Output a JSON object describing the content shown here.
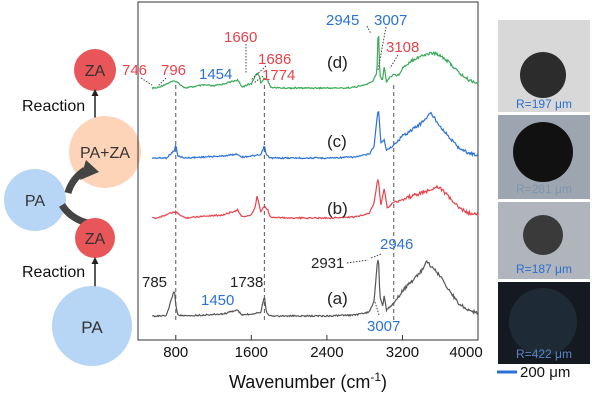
{
  "chart_data": {
    "type": "line",
    "xlabel": "Wavenumber (cm",
    "xlabel_sup": "-1",
    "xlabel_close": ")",
    "xlim": [
      400,
      4000
    ],
    "xticks": [
      800,
      1600,
      2400,
      3200,
      4000
    ],
    "grid": false,
    "series_colors": {
      "d": "#3aaa5a",
      "c": "#2b72d6",
      "b": "#e8424a",
      "a": "#555555"
    },
    "series": [
      {
        "name": "(d)",
        "key": "d",
        "color": "#3aaa5a",
        "baseline": 88,
        "x": [
          600,
          746,
          796,
          900,
          1100,
          1200,
          1300,
          1454,
          1500,
          1550,
          1600,
          1640,
          1660,
          1686,
          1700,
          1738,
          1774,
          1800,
          1900,
          2000,
          2200,
          2400,
          2600,
          2700,
          2800,
          2880,
          2930,
          2945,
          2960,
          2990,
          3007,
          3030,
          3060,
          3108,
          3150,
          3200,
          3300,
          3400,
          3500,
          3560,
          3600,
          3700,
          3800,
          3900,
          4000
        ],
        "y": [
          0,
          6,
          7,
          0,
          3,
          2,
          4,
          8,
          1,
          3,
          4,
          12,
          15,
          12,
          5,
          10,
          8,
          1,
          0,
          0,
          0,
          0,
          0,
          1,
          3,
          6,
          15,
          65,
          12,
          8,
          22,
          6,
          10,
          14,
          12,
          20,
          28,
          32,
          35,
          34,
          33,
          25,
          15,
          8,
          5
        ]
      },
      {
        "name": "(c)",
        "key": "c",
        "color": "#2b72d6",
        "baseline": 158,
        "x": [
          600,
          700,
          790,
          800,
          820,
          900,
          1100,
          1300,
          1450,
          1500,
          1600,
          1700,
          1738,
          1760,
          1800,
          2000,
          2400,
          2700,
          2850,
          2900,
          2931,
          2946,
          2970,
          3007,
          3030,
          3100,
          3200,
          3300,
          3400,
          3450,
          3500,
          3600,
          3700,
          3800,
          3900,
          4000
        ],
        "y": [
          0,
          0,
          8,
          14,
          2,
          0,
          1,
          2,
          4,
          1,
          2,
          3,
          12,
          3,
          0,
          0,
          0,
          1,
          4,
          12,
          40,
          50,
          15,
          18,
          8,
          12,
          22,
          28,
          35,
          40,
          45,
          32,
          20,
          10,
          5,
          3
        ]
      },
      {
        "name": "(b)",
        "key": "b",
        "color": "#e8424a",
        "baseline": 218,
        "x": [
          600,
          746,
          796,
          900,
          1100,
          1300,
          1454,
          1500,
          1600,
          1640,
          1660,
          1686,
          1700,
          1738,
          1774,
          1800,
          2000,
          2400,
          2700,
          2850,
          2900,
          2931,
          2945,
          2970,
          3007,
          3040,
          3108,
          3200,
          3300,
          3400,
          3500,
          3560,
          3600,
          3700,
          3800,
          3900,
          4000
        ],
        "y": [
          0,
          5,
          6,
          0,
          2,
          3,
          8,
          1,
          3,
          10,
          22,
          12,
          6,
          12,
          8,
          1,
          0,
          0,
          1,
          5,
          15,
          35,
          40,
          12,
          30,
          10,
          16,
          18,
          22,
          25,
          28,
          32,
          30,
          20,
          10,
          5,
          3
        ]
      },
      {
        "name": "(a)",
        "key": "a",
        "color": "#555555",
        "baseline": 316,
        "x": [
          600,
          700,
          785,
          800,
          820,
          900,
          1100,
          1300,
          1450,
          1500,
          1600,
          1700,
          1738,
          1760,
          1800,
          2000,
          2400,
          2700,
          2850,
          2900,
          2931,
          2946,
          2960,
          2990,
          3007,
          3030,
          3100,
          3200,
          3300,
          3400,
          3460,
          3500,
          3600,
          3700,
          3800,
          3900,
          4000
        ],
        "y": [
          0,
          0,
          26,
          12,
          1,
          0,
          1,
          2,
          6,
          1,
          2,
          4,
          20,
          4,
          0,
          0,
          0,
          1,
          4,
          15,
          50,
          60,
          20,
          10,
          20,
          6,
          12,
          25,
          35,
          45,
          55,
          50,
          40,
          25,
          12,
          6,
          3
        ]
      }
    ],
    "peak_labels": [
      {
        "text": "746",
        "color": "#e8424a"
      },
      {
        "text": "796",
        "color": "#e8424a"
      },
      {
        "text": "1454",
        "color": "#2b72d6"
      },
      {
        "text": "1660",
        "color": "#e8424a"
      },
      {
        "text": "1686",
        "color": "#e8424a"
      },
      {
        "text": "1774",
        "color": "#e8424a"
      },
      {
        "text": "2945",
        "color": "#2b72d6"
      },
      {
        "text": "3007",
        "color": "#2b72d6"
      },
      {
        "text": "3108",
        "color": "#e8424a"
      },
      {
        "text": "785",
        "color": "#222222"
      },
      {
        "text": "1738",
        "color": "#222222"
      },
      {
        "text": "1450",
        "color": "#2b72d6"
      },
      {
        "text": "2931",
        "color": "#222222"
      },
      {
        "text": "2946",
        "color": "#2b72d6"
      },
      {
        "text": "3007",
        "color": "#2b72d6"
      }
    ],
    "dashed_guides_x": [
      800,
      1738,
      3108
    ]
  },
  "diagram": {
    "nodes": [
      {
        "label": "ZA",
        "color": "#e8565a"
      },
      {
        "label": "PA+ZA",
        "color": "#fdd4b8"
      },
      {
        "label": "PA",
        "color": "#b7d5f5"
      },
      {
        "label": "ZA",
        "color": "#e8565a"
      },
      {
        "label": "PA",
        "color": "#b7d5f5"
      }
    ],
    "reaction_labels": [
      "Reaction",
      "Reaction"
    ]
  },
  "micrographs": [
    {
      "label": "R=197 μm",
      "bg": "#d8d8d8",
      "drop": "#2c2c2c"
    },
    {
      "label": "R=281 μm",
      "bg": "#9da6b0",
      "drop": "#111111"
    },
    {
      "label": "R=187 μm",
      "bg": "#b0b4bd",
      "drop": "#3a3a3a"
    },
    {
      "label": "R=422 μm",
      "bg": "#151a22",
      "drop": "#1e2b36"
    }
  ],
  "scale_bar": {
    "label": "200 μm",
    "color": "#2b72d6"
  }
}
